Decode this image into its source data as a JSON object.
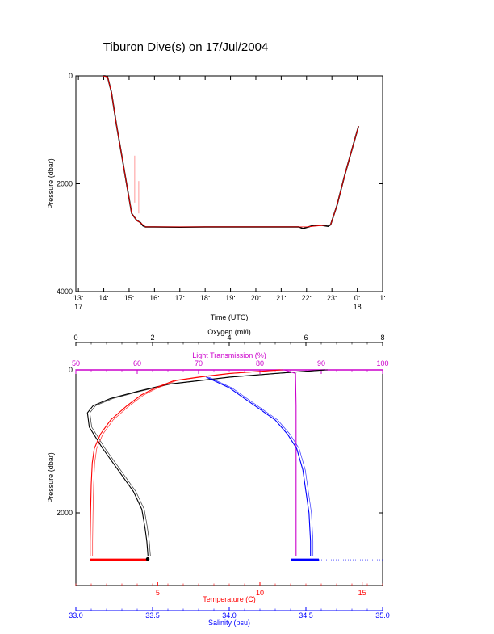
{
  "page": {
    "title": "Tiburon Dive(s) on 17/Jul/2004"
  },
  "chart_data": [
    {
      "type": "line",
      "title": "Tiburon Dive(s) on 17/Jul/2004",
      "xlabel": "Time (UTC)",
      "ylabel": "Pressure (dbar)",
      "x_ticks": [
        {
          "label": "13:",
          "sub": "17",
          "hour": 13
        },
        {
          "label": "14:",
          "sub": "",
          "hour": 14
        },
        {
          "label": "15:",
          "sub": "",
          "hour": 15
        },
        {
          "label": "16:",
          "sub": "",
          "hour": 16
        },
        {
          "label": "17:",
          "sub": "",
          "hour": 17
        },
        {
          "label": "18:",
          "sub": "",
          "hour": 18
        },
        {
          "label": "19:",
          "sub": "",
          "hour": 19
        },
        {
          "label": "20:",
          "sub": "",
          "hour": 20
        },
        {
          "label": "21:",
          "sub": "",
          "hour": 21
        },
        {
          "label": "22:",
          "sub": "",
          "hour": 22
        },
        {
          "label": "23:",
          "sub": "",
          "hour": 23
        },
        {
          "label": "0:",
          "sub": "18",
          "hour": 24
        },
        {
          "label": "1:",
          "sub": "",
          "hour": 25
        }
      ],
      "xlim": [
        12.9,
        25.0
      ],
      "y_ticks": [
        0,
        2000,
        4000
      ],
      "ylim": [
        0,
        4000
      ],
      "y_inverted": true,
      "series": [
        {
          "color": "#000000",
          "x": [
            13.95,
            14.05,
            14.15,
            14.3,
            14.5,
            14.7,
            14.9,
            15.1,
            15.3,
            15.45,
            15.55,
            15.65,
            16.0,
            17.0,
            18.0,
            19.0,
            20.0,
            21.0,
            21.7,
            21.85,
            22.0,
            22.3,
            22.6,
            22.85,
            22.95,
            23.2,
            23.5,
            23.8,
            24.05
          ],
          "y": [
            0,
            0,
            20,
            300,
            900,
            1450,
            2000,
            2550,
            2680,
            2720,
            2780,
            2800,
            2800,
            2805,
            2800,
            2800,
            2800,
            2800,
            2800,
            2830,
            2810,
            2770,
            2770,
            2790,
            2760,
            2400,
            1850,
            1350,
            930
          ]
        },
        {
          "color": "#ff0000",
          "x": [
            13.95,
            14.15,
            14.3,
            14.5,
            14.7,
            14.9,
            15.1,
            15.3,
            15.5,
            15.65,
            16.0,
            21.0,
            22.0,
            22.95,
            23.2,
            23.5,
            23.8,
            24.05
          ],
          "y": [
            0,
            20,
            300,
            900,
            1450,
            2000,
            2550,
            2680,
            2740,
            2800,
            2800,
            2800,
            2800,
            2760,
            2400,
            1850,
            1350,
            930
          ]
        },
        {
          "color": "#ff9999",
          "x": [
            15.22,
            15.22,
            15.38,
            15.38
          ],
          "y": [
            1480,
            2350,
            1950,
            2550
          ]
        }
      ]
    },
    {
      "type": "line",
      "ylabel": "Pressure (dbar)",
      "y_ticks": [
        0,
        2000
      ],
      "ylim": [
        0,
        2000
      ],
      "y_inverted": true,
      "axes": [
        {
          "position": "top",
          "label": "Oxygen (ml/l)",
          "color": "#000000",
          "range": [
            0,
            8
          ],
          "ticks": [
            0,
            2,
            4,
            6,
            8
          ]
        },
        {
          "position": "top",
          "label": "Light Transmission (%)",
          "color": "#cc00cc",
          "range": [
            50,
            100
          ],
          "ticks": [
            50,
            60,
            70,
            80,
            90,
            100
          ]
        },
        {
          "position": "bottom",
          "label": "Temperature (C)",
          "color": "#ff0000",
          "range": [
            1.0,
            16.0
          ],
          "ticks": [
            5,
            10,
            15
          ]
        },
        {
          "position": "bottom",
          "label": "Salinity (psu)",
          "color": "#0000ff",
          "range": [
            33.0,
            35.0
          ],
          "ticks": [
            "33.0",
            "33.5",
            "34.0",
            "34.5",
            "35.0"
          ]
        }
      ],
      "series": [
        {
          "name": "Oxygen (ml/l)",
          "color": "#000000",
          "axis": 0,
          "x": [
            6.5,
            5.2,
            4.0,
            3.2,
            2.4,
            1.6,
            0.9,
            0.45,
            0.3,
            0.35,
            0.7,
            1.1,
            1.5,
            1.72,
            1.8,
            1.85,
            1.88
          ],
          "y": [
            0,
            50,
            100,
            150,
            200,
            300,
            400,
            500,
            600,
            800,
            1100,
            1400,
            1700,
            1950,
            2200,
            2400,
            2600
          ]
        },
        {
          "name": "Light Transmission (%)",
          "color": "#cc00cc",
          "axis": 1,
          "x": [
            84,
            85.8,
            85.9,
            85.9,
            85.9,
            85.9
          ],
          "y": [
            0,
            50,
            500,
            1500,
            2400,
            2600
          ]
        },
        {
          "name": "Temperature (C)",
          "color": "#ff0000",
          "axis": 2,
          "x": [
            11.0,
            8.5,
            7.0,
            5.8,
            4.9,
            4.2,
            3.5,
            2.7,
            2.2,
            1.9,
            1.8,
            1.75,
            1.72,
            1.7,
            1.7
          ],
          "y": [
            0,
            50,
            100,
            150,
            250,
            350,
            500,
            700,
            900,
            1100,
            1300,
            1600,
            2000,
            2400,
            2600
          ]
        },
        {
          "name": "Salinity (psu)",
          "color": "#0000ff",
          "axis": 3,
          "x": [
            33.85,
            33.9,
            34.0,
            34.1,
            34.2,
            34.3,
            34.38,
            34.44,
            34.48,
            34.5,
            34.52,
            34.53,
            34.53
          ],
          "y": [
            100,
            150,
            250,
            400,
            550,
            700,
            900,
            1100,
            1400,
            1700,
            2000,
            2400,
            2600
          ]
        }
      ]
    }
  ]
}
